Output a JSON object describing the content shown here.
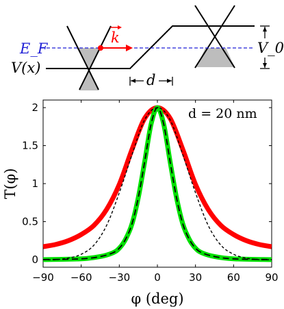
{
  "schematic": {
    "fermi_label": "E_F",
    "potential_label": "V(x)",
    "wavevector_label": "k",
    "width_label": "d",
    "barrier_label": "V_0"
  },
  "chart_data": {
    "type": "line",
    "title": "",
    "annotation": "d = 20 nm",
    "xlabel": "φ (deg)",
    "ylabel": "T(φ)",
    "xlim": [
      -90,
      90
    ],
    "ylim": [
      -0.1,
      2.1
    ],
    "xticks": [
      -90,
      -60,
      -30,
      0,
      30,
      60,
      90
    ],
    "yticks": [
      0,
      0.5,
      1,
      1.5,
      2
    ],
    "grid": false,
    "legend": "none",
    "series": [
      {
        "color": "#ff0000",
        "style": "thick-solid",
        "x": [
          -90,
          -80,
          -70,
          -60,
          -50,
          -40,
          -30,
          -20,
          -10,
          0,
          10,
          20,
          30,
          40,
          50,
          60,
          70,
          80,
          90
        ],
        "y": [
          0.17,
          0.2,
          0.25,
          0.33,
          0.45,
          0.66,
          0.99,
          1.45,
          1.86,
          2.0,
          1.86,
          1.45,
          0.99,
          0.66,
          0.45,
          0.33,
          0.25,
          0.2,
          0.17
        ]
      },
      {
        "color": "#00e000",
        "style": "thick-solid",
        "x": [
          -90,
          -60,
          -45,
          -35,
          -30,
          -25,
          -20,
          -15,
          -10,
          -5,
          0,
          5,
          10,
          15,
          20,
          25,
          30,
          35,
          45,
          60,
          90
        ],
        "y": [
          0.0,
          0.01,
          0.04,
          0.09,
          0.15,
          0.27,
          0.47,
          0.82,
          1.29,
          1.78,
          2.0,
          1.78,
          1.29,
          0.82,
          0.47,
          0.27,
          0.15,
          0.09,
          0.04,
          0.01,
          0.0
        ]
      },
      {
        "color": "#000000",
        "style": "thin-dashed",
        "x": [
          -90,
          -80,
          -70,
          -60,
          -50,
          -40,
          -30,
          -20,
          -10,
          0,
          10,
          20,
          30,
          40,
          50,
          60,
          70,
          80,
          90
        ],
        "y": [
          0.0,
          0.0,
          0.02,
          0.07,
          0.19,
          0.45,
          0.88,
          1.38,
          1.84,
          2.0,
          1.84,
          1.38,
          0.88,
          0.45,
          0.19,
          0.07,
          0.02,
          0.0,
          0.0
        ]
      },
      {
        "color": "#000000",
        "style": "dashed",
        "x": [
          -90,
          -60,
          -45,
          -35,
          -30,
          -25,
          -20,
          -15,
          -10,
          -5,
          0,
          5,
          10,
          15,
          20,
          25,
          30,
          35,
          45,
          60,
          90
        ],
        "y": [
          0.0,
          0.01,
          0.04,
          0.09,
          0.15,
          0.27,
          0.47,
          0.82,
          1.29,
          1.78,
          2.0,
          1.78,
          1.29,
          0.82,
          0.47,
          0.27,
          0.15,
          0.09,
          0.04,
          0.01,
          0.0
        ]
      }
    ]
  }
}
